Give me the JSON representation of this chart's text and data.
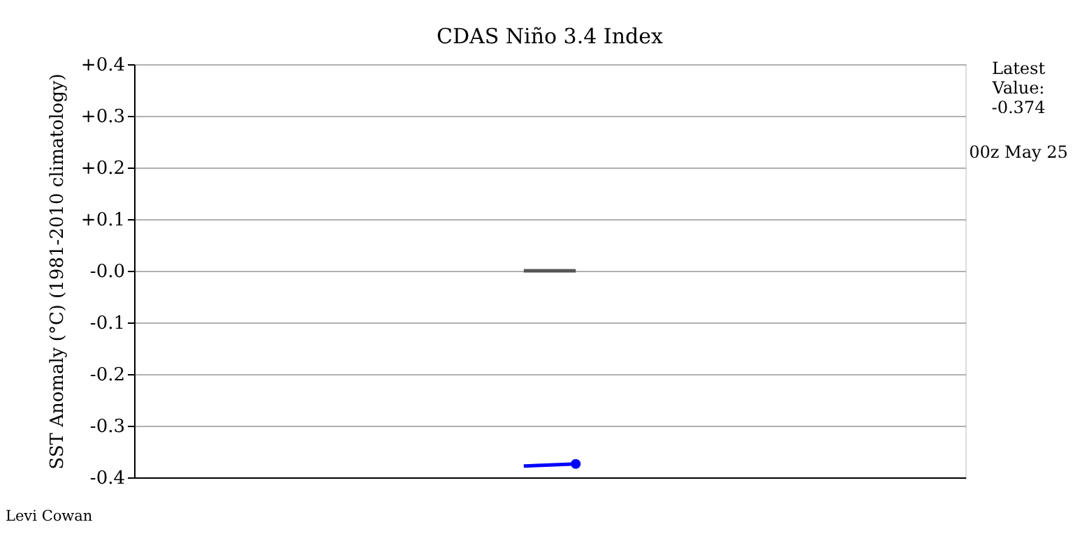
{
  "chart_data": {
    "type": "line",
    "title": "CDAS Niño 3.4 Index",
    "ylabel": "SST Anomaly (°C) (1981-2010 climatology)",
    "categories": [
      null,
      null,
      null,
      null,
      null,
      null,
      null,
      null,
      null,
      null,
      null,
      null,
      null,
      null,
      null,
      null
    ],
    "ylim": [
      -0.4,
      0.4
    ],
    "yticks": [
      {
        "value": -0.4,
        "label": "-0.4"
      },
      {
        "value": -0.3,
        "label": "-0.3"
      },
      {
        "value": -0.2,
        "label": "-0.2"
      },
      {
        "value": -0.1,
        "label": "-0.1"
      },
      {
        "value": 0,
        "label": "-0.0"
      },
      {
        "value": 0.1,
        "label": "+0.1"
      },
      {
        "value": 0.2,
        "label": "+0.2"
      },
      {
        "value": 0.3,
        "label": "+0.3"
      },
      {
        "value": 0.4,
        "label": "+0.4"
      }
    ],
    "tick_labels": "y",
    "grid": "y",
    "series": [
      {
        "color": "#555555",
        "values": [
          null,
          null,
          null,
          null,
          null,
          null,
          null,
          0,
          0,
          null,
          null,
          null,
          null,
          null,
          null,
          null
        ],
        "marker": "none"
      },
      {
        "color": "#0000ff",
        "values": [
          null,
          null,
          null,
          null,
          null,
          null,
          null,
          -0.378,
          -0.374,
          null,
          null,
          null,
          null,
          null,
          null,
          null
        ],
        "marker": "circle"
      }
    ],
    "annotations": [
      "Latest Value: -0.374",
      "00z May 25",
      "Levi Cowan"
    ]
  }
}
